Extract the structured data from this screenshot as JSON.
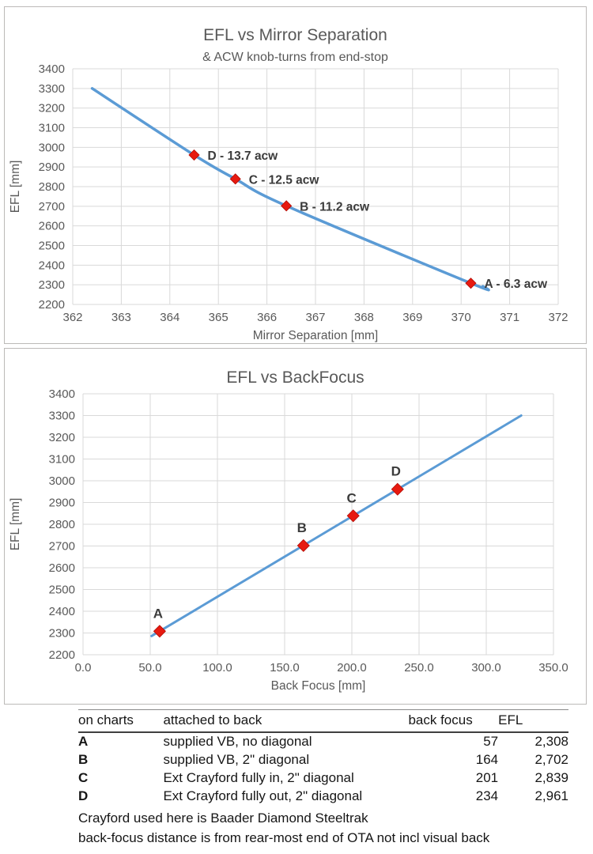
{
  "colors": {
    "line_blue": "#5b9bd5",
    "marker_red": "#e71a10",
    "grid_gray": "#d9d9d9",
    "axis_text_gray": "#595959",
    "title_gray": "#595959",
    "label_dark": "#3b3b3b"
  },
  "chart_data": [
    {
      "type": "line",
      "title": "EFL vs Mirror Separation",
      "subtitle": "& ACW knob-turns from end-stop",
      "xlabel": "Mirror Separation [mm]",
      "ylabel": "EFL [mm]",
      "xlim": [
        362,
        372
      ],
      "xstep": 1,
      "xfmt": "int",
      "ylim": [
        2200,
        3400
      ],
      "ystep": 100,
      "grid": true,
      "legend": "none",
      "curve": true,
      "line_start": {
        "x": 362.4,
        "y": 3300
      },
      "line_end": {
        "x": 370.45,
        "y": 2292
      },
      "points": [
        {
          "x": 364.5,
          "y": 2961,
          "label": "D - 13.7 acw",
          "label_pos": "right"
        },
        {
          "x": 365.35,
          "y": 2839,
          "label": "C - 12.5 acw",
          "label_pos": "right"
        },
        {
          "x": 366.4,
          "y": 2702,
          "label": "B - 11.2 acw",
          "label_pos": "right"
        },
        {
          "x": 370.2,
          "y": 2308,
          "label": "A - 6.3 acw",
          "label_pos": "right"
        }
      ]
    },
    {
      "type": "line",
      "title": "EFL vs BackFocus",
      "subtitle": "",
      "xlabel": "Back Focus [mm]",
      "ylabel": "EFL [mm]",
      "xlim": [
        0,
        350
      ],
      "xstep": 50,
      "xfmt": "one_decimal",
      "ylim": [
        2200,
        3400
      ],
      "ystep": 100,
      "grid": true,
      "legend": "none",
      "curve": false,
      "line_start": {
        "x": 51,
        "y": 2286
      },
      "line_end": {
        "x": 326,
        "y": 3300
      },
      "points": [
        {
          "x": 57,
          "y": 2308,
          "label": "A",
          "label_pos": "above"
        },
        {
          "x": 164,
          "y": 2702,
          "label": "B",
          "label_pos": "above"
        },
        {
          "x": 201,
          "y": 2839,
          "label": "C",
          "label_pos": "above"
        },
        {
          "x": 234,
          "y": 2961,
          "label": "D",
          "label_pos": "above"
        }
      ]
    }
  ],
  "table": {
    "headers": [
      "on charts",
      "attached to back",
      "back focus",
      "EFL"
    ],
    "rows": [
      {
        "key": "A",
        "attached": "supplied VB, no diagonal",
        "back_focus": "57",
        "efl": "2,308"
      },
      {
        "key": "B",
        "attached": "supplied VB, 2\" diagonal",
        "back_focus": "164",
        "efl": "2,702"
      },
      {
        "key": "C",
        "attached": "Ext Crayford fully in, 2\" diagonal",
        "back_focus": "201",
        "efl": "2,839"
      },
      {
        "key": "D",
        "attached": "Ext Crayford fully out, 2\" diagonal",
        "back_focus": "234",
        "efl": "2,961"
      }
    ],
    "notes": [
      "Crayford used here is Baader Diamond Steeltrak",
      "back-focus distance is from rear-most end of OTA not incl visual back"
    ]
  }
}
